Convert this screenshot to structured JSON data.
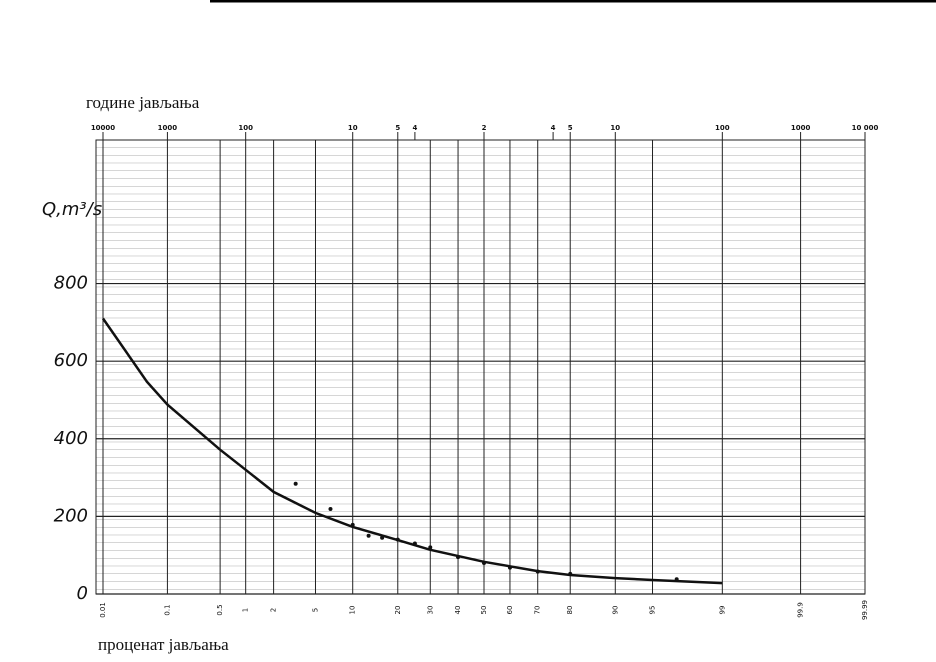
{
  "chart_data": {
    "type": "line",
    "top_label": "године јављања",
    "bottom_label": "проценат јављања",
    "y_label": "Q,m³/s",
    "x": [
      0.01,
      0.05,
      0.1,
      0.5,
      1,
      2,
      5,
      10,
      20,
      30,
      50,
      70,
      80,
      90,
      95,
      99
    ],
    "values": [
      710,
      547,
      488,
      372,
      320,
      263,
      209,
      173,
      139,
      114,
      83,
      59,
      49,
      41,
      36,
      28
    ],
    "points": {
      "x": [
        3.3,
        6.7,
        10,
        13,
        16,
        20,
        25,
        30,
        40,
        50,
        60,
        70,
        80,
        97
      ],
      "values": [
        284,
        219,
        178,
        150,
        145,
        140,
        130,
        120,
        95,
        80,
        68,
        58,
        52,
        38
      ]
    },
    "color": "#111111",
    "xlim": [
      0.01,
      99.99
    ],
    "ylim": [
      0,
      1170
    ],
    "yticks": [
      0,
      200,
      400,
      600,
      800
    ],
    "xticks": [
      0.01,
      0.1,
      0.5,
      1,
      2,
      5,
      10,
      20,
      30,
      40,
      50,
      60,
      70,
      80,
      90,
      95,
      99,
      99.9,
      99.99
    ],
    "x2ticks": [
      {
        "value": 0.01,
        "label": "10000"
      },
      {
        "value": 0.1,
        "label": "1000"
      },
      {
        "value": 1,
        "label": "100"
      },
      {
        "value": 10,
        "label": "10"
      },
      {
        "value": 20,
        "label": "5"
      },
      {
        "value": 25,
        "label": "4"
      },
      {
        "value": 50,
        "label": "2"
      },
      {
        "value": 75,
        "label": "4"
      },
      {
        "value": 80,
        "label": "5"
      },
      {
        "value": 90,
        "label": "10"
      },
      {
        "value": 99,
        "label": "100"
      },
      {
        "value": 99.9,
        "label": "1000"
      },
      {
        "value": 99.99,
        "label": "10 000"
      }
    ],
    "grid": true
  }
}
